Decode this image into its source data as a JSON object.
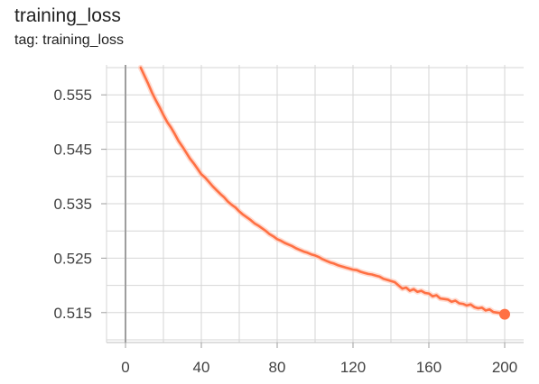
{
  "card": {
    "title": "training_loss",
    "tag": "tag: training_loss"
  },
  "chart_data": {
    "type": "line",
    "title": "training_loss",
    "xlabel": "",
    "ylabel": "",
    "xlim": [
      -10,
      210
    ],
    "ylim": [
      0.5095,
      0.5605
    ],
    "x_ticks": [
      0,
      40,
      80,
      120,
      160,
      200
    ],
    "y_ticks": [
      0.515,
      0.525,
      0.535,
      0.545,
      0.555
    ],
    "grid": true,
    "color": "#ff7043",
    "raw_color": "#ffccbc",
    "zero_line_color": "#9e9e9e",
    "series": [
      {
        "x": [
          8,
          10,
          12,
          14,
          16,
          18,
          20,
          22,
          24,
          26,
          28,
          30,
          32,
          34,
          36,
          38,
          40,
          42,
          44,
          46,
          48,
          50,
          52,
          54,
          56,
          58,
          60,
          62,
          64,
          66,
          68,
          70,
          72,
          74,
          76,
          78,
          80,
          82,
          84,
          86,
          88,
          90,
          92,
          94,
          96,
          98,
          100,
          102,
          104,
          106,
          108,
          110,
          112,
          114,
          116,
          118,
          120,
          122,
          124,
          126,
          128,
          130,
          132,
          134,
          136,
          138,
          140,
          142,
          144,
          146,
          148,
          150,
          152,
          154,
          156,
          158,
          160,
          162,
          164,
          166,
          168,
          170,
          172,
          174,
          176,
          178,
          180,
          182,
          184,
          186,
          188,
          190,
          192,
          194,
          196,
          198,
          200
        ],
        "y": [
          0.56,
          0.5585,
          0.557,
          0.5554,
          0.554,
          0.5527,
          0.5513,
          0.55,
          0.549,
          0.5478,
          0.5465,
          0.5455,
          0.5444,
          0.5433,
          0.5424,
          0.5414,
          0.5404,
          0.5398,
          0.539,
          0.5382,
          0.5375,
          0.5368,
          0.5362,
          0.5354,
          0.5348,
          0.5343,
          0.5336,
          0.533,
          0.5325,
          0.532,
          0.5314,
          0.531,
          0.5305,
          0.53,
          0.5294,
          0.529,
          0.5285,
          0.5282,
          0.5278,
          0.5275,
          0.5272,
          0.5268,
          0.5265,
          0.5262,
          0.526,
          0.5257,
          0.5255,
          0.5252,
          0.5248,
          0.5245,
          0.5242,
          0.524,
          0.5237,
          0.5235,
          0.5233,
          0.5231,
          0.5229,
          0.5228,
          0.5225,
          0.5223,
          0.5221,
          0.522,
          0.5218,
          0.5216,
          0.5212,
          0.521,
          0.5208,
          0.5206,
          0.52,
          0.5194,
          0.5196,
          0.519,
          0.5193,
          0.5188,
          0.519,
          0.5186,
          0.5185,
          0.518,
          0.5182,
          0.5176,
          0.5175,
          0.5174,
          0.517,
          0.5172,
          0.5167,
          0.5166,
          0.5163,
          0.5165,
          0.516,
          0.5158,
          0.5159,
          0.5154,
          0.5156,
          0.5151,
          0.515,
          0.5149,
          0.5147
        ],
        "last_point": {
          "x": 200,
          "y": 0.5147
        }
      }
    ]
  }
}
